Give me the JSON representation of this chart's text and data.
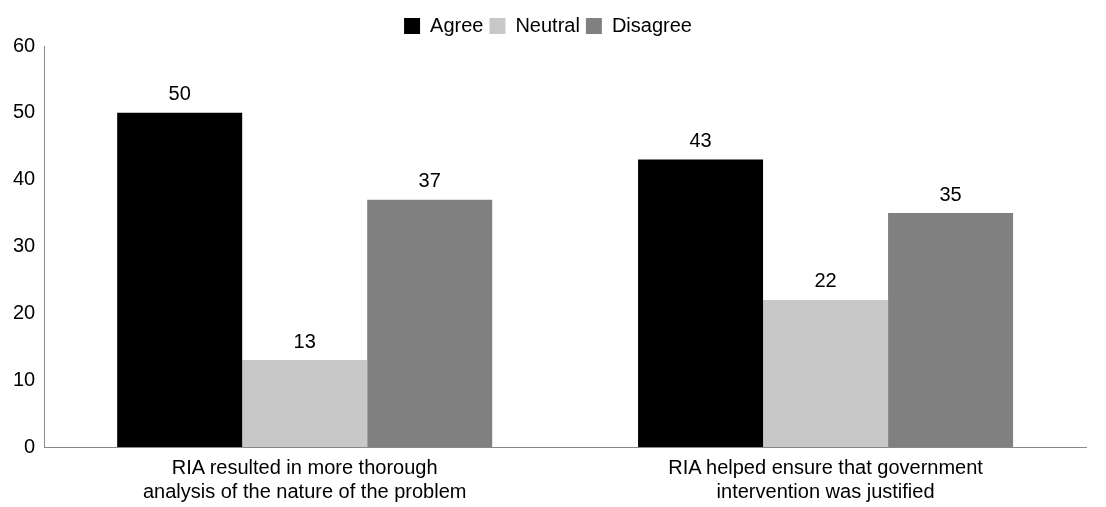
{
  "chart_data": {
    "type": "bar",
    "categories": [
      "RIA resulted in more thorough analysis of the nature of the problem",
      "RIA helped ensure that government intervention was justified"
    ],
    "series": [
      {
        "name": "Agree",
        "color": "#000000",
        "values": [
          50,
          43
        ]
      },
      {
        "name": "Neutral",
        "color": "#c8c8c8",
        "values": [
          13,
          22
        ]
      },
      {
        "name": "Disagree",
        "color": "#808080",
        "values": [
          37,
          35
        ]
      }
    ],
    "ylim": [
      0,
      60
    ],
    "yticks": [
      0,
      10,
      20,
      30,
      40,
      50,
      60
    ],
    "grid": false,
    "legend": "top",
    "data_labels": true
  }
}
